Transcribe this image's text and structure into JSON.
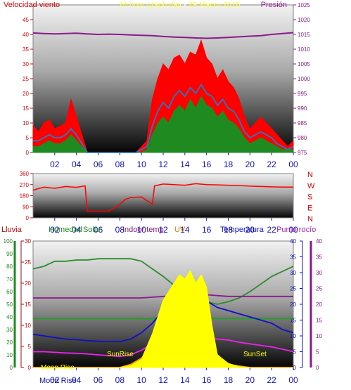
{
  "chart_data": [
    {
      "type": "line",
      "title": "24 hour graph day - 29 Marzo 2016",
      "left_axis_label": "Velocidad viento",
      "right_axis_label": "Presión",
      "left_ticks": [
        0,
        5,
        10,
        15,
        20,
        25,
        30,
        35,
        40,
        45,
        50
      ],
      "right_ticks": [
        975,
        980,
        985,
        990,
        995,
        1000,
        1005,
        1010,
        1015,
        1020,
        1025
      ],
      "x_ticks": [
        "02",
        "04",
        "06",
        "08",
        "10",
        "12",
        "14",
        "16",
        "18",
        "20",
        "22",
        "00"
      ],
      "ylim_left": [
        0,
        50
      ],
      "ylim_right": [
        975,
        1025
      ],
      "series": [
        {
          "color": "#ff0000",
          "axis": "left",
          "x": [
            0,
            0.5,
            1,
            1.5,
            2,
            2.5,
            3,
            3.5,
            4,
            4.5,
            5,
            5.5,
            6,
            6.5,
            7,
            7.5,
            8,
            8.5,
            9,
            9.5,
            10,
            10.5,
            11,
            11.5,
            12,
            12.5,
            13,
            13.5,
            14,
            14.5,
            15,
            15.5,
            16,
            16.5,
            17,
            17.5,
            18,
            18.5,
            19,
            19.5,
            20,
            20.5,
            21,
            21.5,
            22,
            22.5,
            23,
            23.5,
            24
          ],
          "values": [
            9,
            7,
            10,
            11,
            8,
            9,
            10,
            18,
            12,
            6,
            0,
            0,
            0,
            0,
            0,
            0,
            0,
            0,
            0,
            0,
            2,
            4,
            18,
            25,
            30,
            28,
            32,
            33,
            30,
            34,
            33,
            38,
            32,
            30,
            25,
            28,
            24,
            22,
            18,
            12,
            8,
            10,
            12,
            10,
            8,
            6,
            4,
            2,
            4
          ]
        },
        {
          "color": "#1f8a1f",
          "axis": "left",
          "x": [
            0,
            0.5,
            1,
            1.5,
            2,
            2.5,
            3,
            3.5,
            4,
            4.5,
            5,
            5.5,
            6,
            6.5,
            7,
            7.5,
            8,
            8.5,
            9,
            9.5,
            10,
            10.5,
            11,
            11.5,
            12,
            12.5,
            13,
            13.5,
            14,
            14.5,
            15,
            15.5,
            16,
            16.5,
            17,
            17.5,
            18,
            18.5,
            19,
            19.5,
            20,
            20.5,
            21,
            21.5,
            22,
            22.5,
            23,
            23.5,
            24
          ],
          "values": [
            2,
            2,
            3,
            4,
            3,
            3,
            4,
            6,
            4,
            2,
            0,
            0,
            0,
            0,
            0,
            0,
            0,
            0,
            0,
            0,
            0,
            1,
            6,
            10,
            12,
            10,
            14,
            16,
            14,
            18,
            15,
            19,
            16,
            15,
            12,
            14,
            11,
            10,
            8,
            5,
            3,
            4,
            5,
            4,
            3,
            2,
            1,
            1,
            1
          ]
        },
        {
          "color": "#3a6fb0",
          "axis": "left",
          "x": [
            0,
            0.5,
            1,
            1.5,
            2,
            2.5,
            3,
            3.5,
            4,
            4.5,
            5,
            5.5,
            6,
            6.5,
            7,
            7.5,
            8,
            8.5,
            9,
            9.5,
            10,
            10.5,
            11,
            11.5,
            12,
            12.5,
            13,
            13.5,
            14,
            14.5,
            15,
            15.5,
            16,
            16.5,
            17,
            17.5,
            18,
            18.5,
            19,
            19.5,
            20,
            20.5,
            21,
            21.5,
            22,
            22.5,
            23,
            23.5,
            24
          ],
          "values": [
            4,
            4,
            5,
            6,
            5,
            5,
            6,
            8,
            6,
            3,
            0,
            0,
            0,
            0,
            0,
            0,
            0,
            0,
            0,
            0,
            1,
            2,
            9,
            14,
            17,
            15,
            19,
            21,
            19,
            22,
            20,
            23,
            20,
            19,
            16,
            18,
            15,
            14,
            11,
            7,
            5,
            6,
            7,
            6,
            5,
            3,
            2,
            1,
            2
          ]
        },
        {
          "color": "#8b1a8b",
          "axis": "right",
          "x": [
            0,
            1,
            2,
            3,
            4,
            5,
            6,
            7,
            8,
            9,
            10,
            11,
            12,
            13,
            14,
            15,
            16,
            17,
            18,
            19,
            20,
            21,
            22,
            23,
            24
          ],
          "values": [
            1015.5,
            1015.3,
            1015.2,
            1015.3,
            1015.4,
            1015.2,
            1015.0,
            1015.1,
            1015.0,
            1014.8,
            1014.7,
            1014.6,
            1014.3,
            1014.1,
            1014.0,
            1013.8,
            1013.7,
            1013.8,
            1014.0,
            1014.2,
            1014.4,
            1014.6,
            1015.0,
            1015.3,
            1015.6
          ]
        }
      ]
    },
    {
      "type": "line",
      "left_ticks": [
        0,
        90,
        180,
        270,
        360
      ],
      "direction_labels": [
        "N",
        "W",
        "S",
        "E",
        "N"
      ],
      "x_ticks": [
        "02",
        "04",
        "06",
        "08",
        "10",
        "12",
        "14",
        "16",
        "18",
        "20",
        "22",
        "00"
      ],
      "ylim_left": [
        0,
        360
      ],
      "series": [
        {
          "color": "#ff0000",
          "axis": "left",
          "x": [
            0,
            1,
            2,
            3,
            4,
            4.8,
            5,
            6,
            7,
            8,
            8.5,
            9,
            10,
            10.5,
            11,
            11.2,
            12,
            13,
            14,
            15,
            16,
            17,
            18,
            19,
            20,
            21,
            22,
            23,
            24
          ],
          "values": [
            225,
            250,
            240,
            255,
            248,
            260,
            55,
            55,
            55,
            110,
            150,
            165,
            170,
            140,
            110,
            260,
            275,
            270,
            265,
            278,
            270,
            268,
            265,
            262,
            258,
            255,
            252,
            250,
            250
          ]
        }
      ]
    },
    {
      "type": "line",
      "legend": [
        "Lluvia",
        "Humedad",
        "Solar",
        "Indoor temp",
        "UV",
        "Temperatura",
        "Punto rocío"
      ],
      "legend_colors": [
        "#cc0000",
        "#1f8a1f",
        "#1f8a1f",
        "#8b1a8b",
        "#e08000",
        "#1010c8",
        "#b020b0"
      ],
      "far_left_ticks": [
        0,
        10,
        20,
        30,
        40,
        50,
        60,
        70,
        80,
        90,
        100
      ],
      "left_ticks": [
        0,
        5,
        10,
        15,
        20,
        25,
        30
      ],
      "right_ticks": [
        0,
        5,
        10,
        15,
        20,
        25,
        30,
        35,
        40
      ],
      "far_right_ticks": [
        0,
        5,
        10,
        15,
        20,
        25,
        30,
        35,
        40
      ],
      "x_ticks": [
        "02",
        "04",
        "06",
        "08",
        "10",
        "12",
        "14",
        "16",
        "18",
        "20",
        "22",
        "00"
      ],
      "ylim_left": [
        0,
        30
      ],
      "ylim_right": [
        0,
        40
      ],
      "ylim_far_left": [
        0,
        100
      ],
      "annotations": [
        "Moon Rise",
        "Moon Rise",
        "SunRise",
        "SunSet"
      ],
      "series": [
        {
          "name": "Humedad",
          "color": "#2e8b2e",
          "axis": "far-left",
          "x": [
            0,
            1,
            2,
            3,
            4,
            5,
            6,
            7,
            8,
            9,
            10,
            11,
            12,
            13,
            14,
            15,
            16,
            17,
            18,
            19,
            20,
            21,
            22,
            23,
            24
          ],
          "values": [
            78,
            80,
            84,
            84,
            85,
            85,
            86,
            86,
            86,
            86,
            84,
            78,
            72,
            65,
            60,
            55,
            52,
            50,
            52,
            55,
            60,
            66,
            72,
            76,
            80
          ]
        },
        {
          "name": "Indoor temp",
          "color": "#8b1a8b",
          "axis": "right",
          "x": [
            0,
            2,
            4,
            6,
            8,
            10,
            12,
            14,
            16,
            18,
            20,
            22,
            24
          ],
          "values": [
            22,
            22,
            22,
            22,
            22,
            22,
            22.5,
            23,
            23,
            22.5,
            22.5,
            22.5,
            22.5
          ]
        },
        {
          "name": "Punto rocío",
          "color": "#20a020",
          "axis": "right",
          "x": [
            0,
            2,
            4,
            6,
            8,
            10,
            10.5,
            11,
            12,
            14,
            16,
            18,
            20,
            22,
            24
          ],
          "values": [
            15.5,
            15.5,
            15.5,
            15.5,
            15.5,
            15.5,
            15.3,
            15.5,
            15.5,
            15.5,
            15.5,
            15.5,
            15.5,
            15.5,
            15.5
          ]
        },
        {
          "name": "Temperatura",
          "color": "#1010c8",
          "axis": "right",
          "x": [
            0,
            1,
            2,
            3,
            4,
            5,
            6,
            7,
            8,
            9,
            10,
            11,
            12,
            13,
            14,
            15,
            16,
            17,
            18,
            19,
            20,
            21,
            22,
            23,
            24
          ],
          "values": [
            10.5,
            10,
            9.5,
            9,
            8.8,
            8.5,
            8.3,
            8.2,
            8.2,
            9,
            11,
            14,
            18,
            20,
            21,
            22,
            21,
            19,
            18,
            17,
            16,
            15,
            14,
            12,
            11
          ]
        },
        {
          "name": "UV",
          "color": "#ff8c00",
          "axis": "right",
          "x": [
            0,
            6,
            8,
            9,
            10,
            11,
            12,
            13,
            14,
            15,
            16,
            17,
            18,
            19,
            20,
            24
          ],
          "values": [
            0,
            0,
            0,
            1,
            3,
            6,
            8,
            9.5,
            10,
            10,
            9,
            4,
            1,
            0.5,
            0,
            0
          ]
        },
        {
          "name": "Punto rocío",
          "color": "#ee22ee",
          "axis": "right",
          "x": [
            0,
            1,
            2,
            3,
            4,
            5,
            6,
            7,
            8,
            9,
            10,
            11,
            12,
            13,
            14,
            15,
            16,
            17,
            18,
            19,
            20,
            21,
            22,
            23,
            24
          ],
          "values": [
            5,
            5,
            4.8,
            4.6,
            4.5,
            4.3,
            4.0,
            3.8,
            3.5,
            4.0,
            5.5,
            7.5,
            8.5,
            9.0,
            9.5,
            9.8,
            9.5,
            9.0,
            8.7,
            8.0,
            7.5,
            7.0,
            6.5,
            5.8,
            5.0
          ]
        },
        {
          "name": "Solar",
          "color": "#ffff00",
          "axis": "left",
          "x": [
            0,
            7,
            8,
            9,
            10,
            10.5,
            11,
            11.5,
            12,
            12.5,
            13,
            13.5,
            14,
            14.5,
            15,
            15.5,
            16,
            16.5,
            17,
            18,
            19,
            20,
            24
          ],
          "values": [
            0,
            0,
            0,
            0.5,
            2,
            5,
            8,
            12,
            16,
            18,
            20,
            22,
            21,
            23,
            20,
            22,
            19,
            10,
            3,
            1,
            0.2,
            0,
            0
          ]
        }
      ]
    }
  ]
}
